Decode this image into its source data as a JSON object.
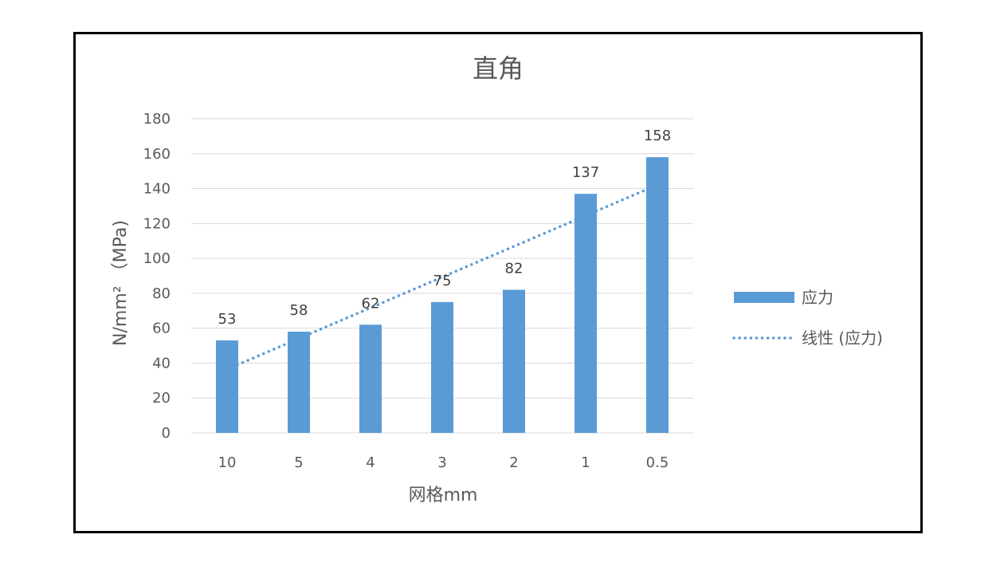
{
  "chart_data": {
    "type": "bar",
    "title": "直角",
    "xlabel": "网格mm",
    "ylabel": "N/mm² （MPa)",
    "categories": [
      "10",
      "5",
      "4",
      "3",
      "2",
      "1",
      "0.5"
    ],
    "series": [
      {
        "name": "应力",
        "values": [
          53,
          58,
          62,
          75,
          82,
          137,
          158
        ],
        "color": "#5B9BD5"
      }
    ],
    "trendline": {
      "name": "线性 (应力)",
      "type": "linear",
      "of_series": "应力",
      "style": "dotted",
      "color": "#5B9BD5"
    },
    "data_labels": true,
    "ylim": [
      0,
      180
    ],
    "yticks": [
      0,
      20,
      40,
      60,
      80,
      100,
      120,
      140,
      160,
      180
    ],
    "grid": true,
    "legend": "right"
  },
  "colors": {
    "axis_text": "#595959",
    "gridline": "#D9D9D9",
    "bar": "#5B9BD5"
  }
}
